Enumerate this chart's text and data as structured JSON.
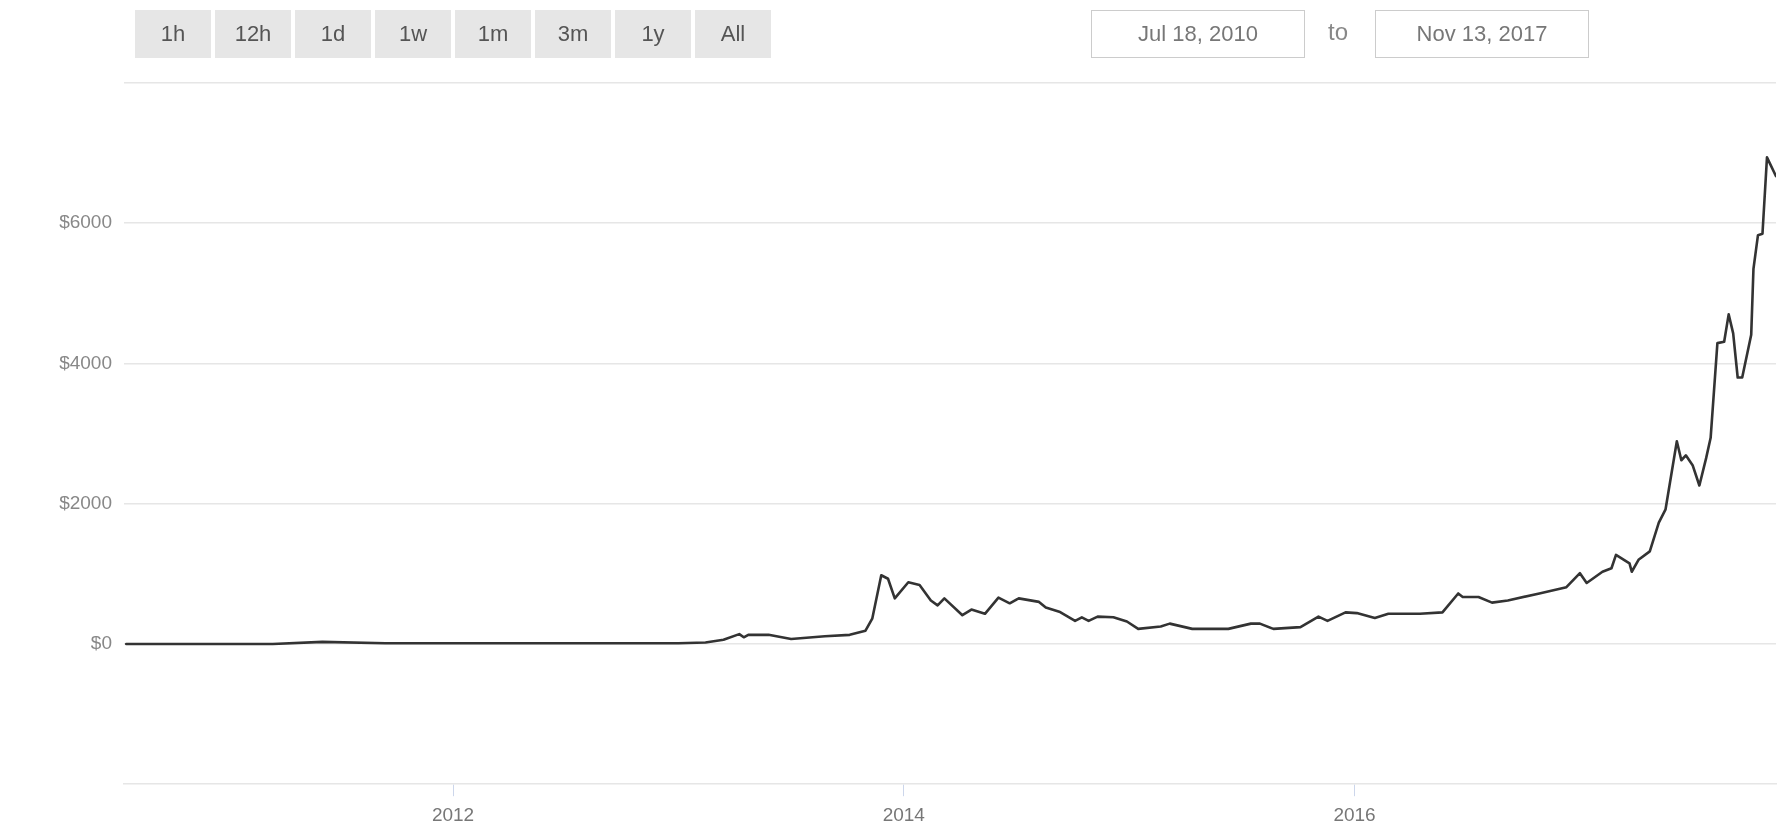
{
  "chart_data": {
    "type": "line",
    "annotations": [
      "1h",
      "12h",
      "1d",
      "1w",
      "1m",
      "3m",
      "1y",
      "All",
      "Jul 18, 2010",
      "to",
      "Nov 13, 2017"
    ],
    "xlim": [
      2010.54,
      2017.87
    ],
    "xticks": [
      2012,
      2014,
      2016
    ],
    "ylim": [
      -2000,
      8000
    ],
    "yticks": [
      {
        "value": 0,
        "label": "$0"
      },
      {
        "value": 2000,
        "label": "$2000"
      },
      {
        "value": 4000,
        "label": "$4000"
      },
      {
        "value": 6000,
        "label": "$6000"
      },
      {
        "value": 8000,
        "label": null
      }
    ],
    "grid": "y",
    "legend": false,
    "marker": "none",
    "line_style": "solid",
    "series": [
      {
        "color": "#333333",
        "x": [
          2010.55,
          2010.9,
          2011.2,
          2011.42,
          2011.7,
          2012.0,
          2012.5,
          2012.9,
          2013.0,
          2013.12,
          2013.2,
          2013.27,
          2013.29,
          2013.31,
          2013.4,
          2013.5,
          2013.65,
          2013.76,
          2013.83,
          2013.86,
          2013.9,
          2013.93,
          2013.96,
          2014.02,
          2014.07,
          2014.12,
          2014.15,
          2014.18,
          2014.26,
          2014.3,
          2014.36,
          2014.42,
          2014.47,
          2014.51,
          2014.6,
          2014.63,
          2014.69,
          2014.76,
          2014.79,
          2014.82,
          2014.86,
          2014.93,
          2014.99,
          2015.04,
          2015.14,
          2015.18,
          2015.28,
          2015.44,
          2015.54,
          2015.58,
          2015.64,
          2015.76,
          2015.84,
          2015.88,
          2015.96,
          2016.01,
          2016.09,
          2016.15,
          2016.29,
          2016.39,
          2016.46,
          2016.48,
          2016.55,
          2016.61,
          2016.68,
          2016.82,
          2016.94,
          2017.0,
          2017.03,
          2017.1,
          2017.14,
          2017.16,
          2017.22,
          2017.23,
          2017.26,
          2017.31,
          2017.35,
          2017.38,
          2017.4,
          2017.43,
          2017.45,
          2017.47,
          2017.5,
          2017.53,
          2017.56,
          2017.58,
          2017.61,
          2017.64,
          2017.66,
          2017.68,
          2017.7,
          2017.72,
          2017.76,
          2017.77,
          2017.79,
          2017.81,
          2017.83,
          2017.87
        ],
        "values": [
          0,
          0,
          0,
          30,
          10,
          10,
          10,
          10,
          10,
          20,
          60,
          140,
          95,
          130,
          130,
          70,
          110,
          130,
          190,
          360,
          980,
          930,
          650,
          880,
          840,
          620,
          550,
          650,
          410,
          490,
          430,
          660,
          580,
          650,
          600,
          520,
          460,
          330,
          380,
          330,
          390,
          380,
          320,
          215,
          250,
          290,
          215,
          215,
          290,
          290,
          215,
          240,
          390,
          330,
          450,
          440,
          370,
          430,
          430,
          450,
          720,
          670,
          670,
          590,
          620,
          720,
          810,
          1010,
          870,
          1030,
          1080,
          1270,
          1150,
          1030,
          1200,
          1320,
          1730,
          1920,
          2310,
          2890,
          2620,
          2690,
          2550,
          2260,
          2650,
          2940,
          4290,
          4310,
          4700,
          4430,
          3800,
          3800,
          4410,
          5350,
          5830,
          5850,
          6940,
          6670
        ]
      }
    ]
  }
}
